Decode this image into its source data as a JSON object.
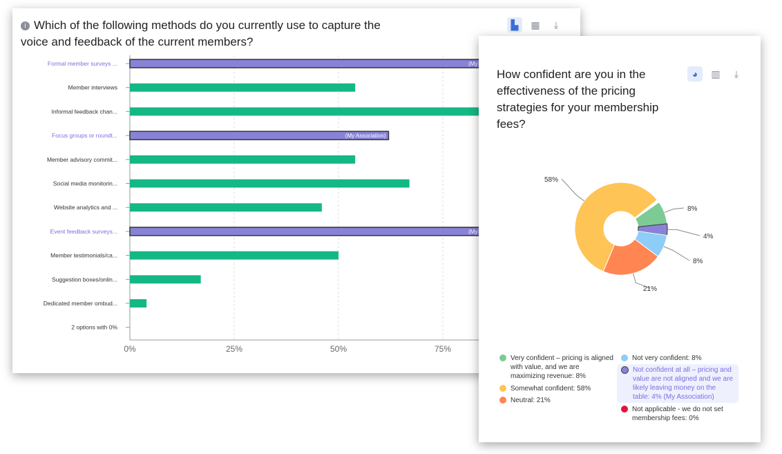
{
  "left_card": {
    "title": "Which of the following methods do you currently use to capture the voice and feedback of the current members?",
    "toolbar": [
      "bar-chart-icon",
      "table-icon",
      "download-icon"
    ]
  },
  "right_card": {
    "title": "How confident are you in the effectiveness of the pricing strategies for your membership fees?",
    "toolbar": [
      "pie-chart-icon",
      "bar-chart-icon",
      "download-icon"
    ]
  },
  "colors": {
    "bar": "#13b884",
    "highlight": "#8983d7",
    "highlight_text": "#7a6fe0"
  },
  "chart_data": [
    {
      "type": "bar",
      "orientation": "horizontal",
      "xlim": [
        0,
        100
      ],
      "xticks": [
        "0%",
        "25%",
        "50%",
        "75%"
      ],
      "grid": true,
      "categories": [
        "Formal member surveys ...",
        "Member interviews",
        "Informal feedback chan...",
        "Focus groups or roundt...",
        "Member advisory commit...",
        "Social media monitorin...",
        "Website analytics and ...",
        "Event feedback surveys...",
        "Member testimonials/ca...",
        "Suggestion boxes/onlin...",
        "Dedicated member ombud...",
        "2 options with 0%"
      ],
      "values": [
        92,
        54,
        88,
        62,
        54,
        67,
        46,
        88,
        50,
        17,
        4,
        0
      ],
      "highlighted": [
        true,
        false,
        false,
        true,
        false,
        false,
        false,
        true,
        false,
        false,
        false,
        false
      ],
      "highlight_label": "(My Association)"
    },
    {
      "type": "pie",
      "donut": true,
      "slices": [
        {
          "label": "Very confident – pricing is aligned with value, and we are maximizing revenue",
          "value": 8,
          "color": "#7ccb94",
          "legend": "Very confident – pricing is aligned with value, and we are maximizing revenue: 8%"
        },
        {
          "label": "Not confident at all – pricing and value are not aligned and we are likely leaving money on the table",
          "value": 4,
          "color": "#8983d7",
          "legend": "Not confident at all – pricing and value are not aligned and we are likely leaving money on the table: 4% (My Association)",
          "highlighted": true
        },
        {
          "label": "Not very confident",
          "value": 8,
          "color": "#8dcdf7",
          "legend": "Not very confident: 8%"
        },
        {
          "label": "Neutral",
          "value": 21,
          "color": "#ff8552",
          "legend": "Neutral: 21%"
        },
        {
          "label": "Somewhat confident",
          "value": 58,
          "color": "#ffc456",
          "legend": "Somewhat confident: 58%"
        },
        {
          "label": "Not applicable - we do not set membership fees",
          "value": 0,
          "color": "#e0143c",
          "legend": "Not applicable - we do not set membership fees: 0%"
        }
      ],
      "data_labels": [
        "8%",
        "4%",
        "8%",
        "21%",
        "58%"
      ]
    }
  ]
}
